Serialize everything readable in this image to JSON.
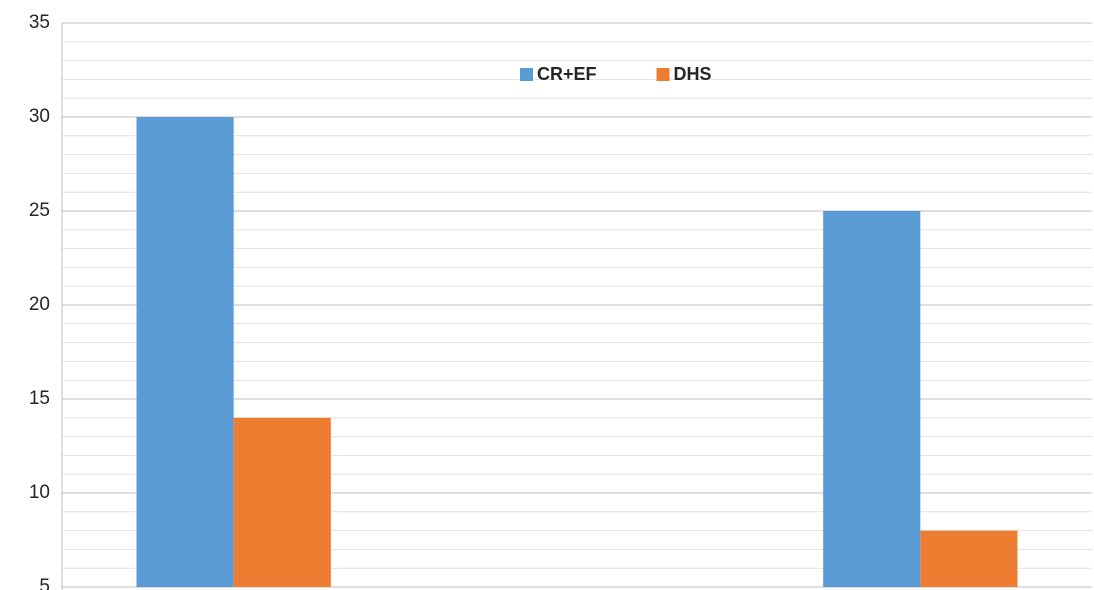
{
  "chart_data": {
    "type": "bar",
    "categories": [
      null,
      null,
      null
    ],
    "series": [
      {
        "name": "CR+EF",
        "color": "#5b9bd5",
        "values": [
          30,
          null,
          25
        ]
      },
      {
        "name": "DHS",
        "color": "#ed7d31",
        "values": [
          14,
          null,
          8
        ]
      }
    ],
    "ylim": [
      5,
      35
    ],
    "yticks": [
      5,
      10,
      15,
      20,
      25,
      30,
      35
    ],
    "grid": true,
    "minor_grid_step": 1,
    "legend": "top"
  }
}
